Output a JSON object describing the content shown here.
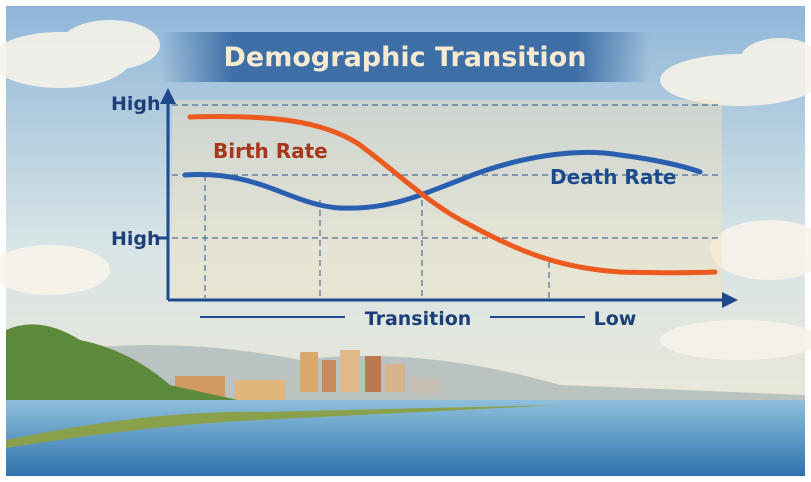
{
  "title": "Demographic Transition",
  "y_axis": {
    "labels": [
      "High",
      "High"
    ]
  },
  "x_axis": {
    "labels": [
      "Transition",
      "Low"
    ]
  },
  "curves": {
    "birth_rate": "Birth Rate",
    "death_rate": "Death Rate"
  }
}
